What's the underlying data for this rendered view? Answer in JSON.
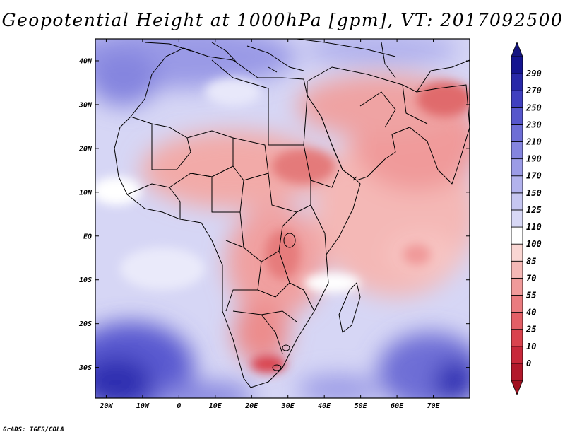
{
  "title": "Geopotential Height at 1000hPa [gpm], VT: 2017092500",
  "credit": "GrADS: IGES/COLA",
  "map": {
    "lon_range": [
      -23,
      80
    ],
    "lat_range": [
      -37,
      45
    ],
    "lat_ticks": [
      {
        "value": 40,
        "label": "40N"
      },
      {
        "value": 30,
        "label": "30N"
      },
      {
        "value": 20,
        "label": "20N"
      },
      {
        "value": 10,
        "label": "10N"
      },
      {
        "value": 0,
        "label": "EQ"
      },
      {
        "value": -10,
        "label": "10S"
      },
      {
        "value": -20,
        "label": "20S"
      },
      {
        "value": -30,
        "label": "30S"
      }
    ],
    "lon_ticks": [
      {
        "value": -20,
        "label": "20W"
      },
      {
        "value": -10,
        "label": "10W"
      },
      {
        "value": 0,
        "label": "0"
      },
      {
        "value": 10,
        "label": "10E"
      },
      {
        "value": 20,
        "label": "20E"
      },
      {
        "value": 30,
        "label": "30E"
      },
      {
        "value": 40,
        "label": "40E"
      },
      {
        "value": 50,
        "label": "50E"
      },
      {
        "value": 60,
        "label": "60E"
      },
      {
        "value": 70,
        "label": "70E"
      }
    ]
  },
  "colorbar": {
    "levels": [
      "0",
      "10",
      "25",
      "40",
      "55",
      "70",
      "85",
      "100",
      "110",
      "125",
      "150",
      "170",
      "190",
      "210",
      "230",
      "250",
      "270",
      "290"
    ],
    "colors": [
      "#b2182b",
      "#c8283a",
      "#d9434e",
      "#e35f66",
      "#ea7b7f",
      "#f09a9a",
      "#f5b8b6",
      "#fad6d3",
      "#ffffff",
      "#d8d8f6",
      "#c6c6f1",
      "#b2b2ed",
      "#9b9be6",
      "#8585df",
      "#6e6ed6",
      "#5757cc",
      "#4040bf",
      "#2828a8",
      "#141490"
    ],
    "bottom_color": "#a01020",
    "top_color": "#141480"
  }
}
